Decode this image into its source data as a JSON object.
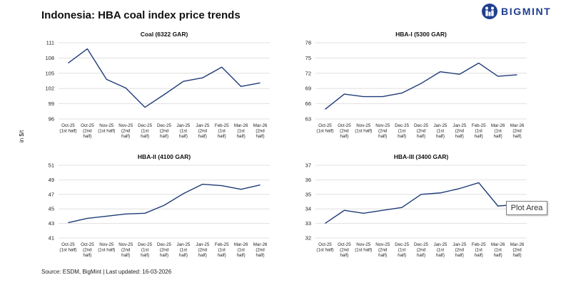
{
  "title": "Indonesia: HBA coal index price trends",
  "y_axis_label": "in $/t",
  "source": "Source: ESDM, BigMint | Last updated: 16-03-2026",
  "logo": {
    "text": "BIGMINT",
    "icon": "bigmint-logo-icon"
  },
  "tooltip": "Plot Area",
  "colors": {
    "line": "#1f3b77",
    "grid": "#d9d9d9",
    "text": "#222222"
  },
  "chart_data": [
    {
      "type": "line",
      "title": "Coal (6322 GAR)",
      "categories": [
        [
          "Oct-25",
          "(1st half)"
        ],
        [
          "Oct-25",
          "(2nd",
          "half)"
        ],
        [
          "Nov-25",
          "(1st half)"
        ],
        [
          "Nov-25",
          "(2nd",
          "half)"
        ],
        [
          "Dec-25",
          "(1st",
          "half)"
        ],
        [
          "Dec-25",
          "(2nd",
          "half)"
        ],
        [
          "Jan-25",
          "(1st",
          "half)"
        ],
        [
          "Jan-25",
          "(2nd",
          "half)"
        ],
        [
          "Feb-25",
          "(1st",
          "half)"
        ],
        [
          "Mar-26",
          "(1st",
          "half)"
        ],
        [
          "Mar-26",
          "(2nd",
          "half)"
        ]
      ],
      "values": [
        107.0,
        109.8,
        103.8,
        102.1,
        98.3,
        100.8,
        103.4,
        104.1,
        106.2,
        102.4,
        103.1
      ],
      "ylim": [
        96,
        111
      ],
      "yticks": [
        96,
        99,
        102,
        105,
        108,
        111
      ]
    },
    {
      "type": "line",
      "title": "HBA-I (5300 GAR)",
      "categories": [
        [
          "Oct-25",
          "(1st half)"
        ],
        [
          "Oct-25",
          "(2nd",
          "half)"
        ],
        [
          "Nov-25",
          "(1st half)"
        ],
        [
          "Nov-25",
          "(2nd",
          "half)"
        ],
        [
          "Dec-25",
          "(1st",
          "half)"
        ],
        [
          "Dec-25",
          "(2nd",
          "half)"
        ],
        [
          "Jan-25",
          "(1st",
          "half)"
        ],
        [
          "Jan-25",
          "(2nd",
          "half)"
        ],
        [
          "Feb-25",
          "(1st",
          "half)"
        ],
        [
          "Mar-26",
          "(1st",
          "half)"
        ],
        [
          "Mar-26",
          "(2nd",
          "half)"
        ]
      ],
      "values": [
        64.9,
        67.9,
        67.4,
        67.4,
        68.1,
        70.0,
        72.3,
        71.8,
        74.0,
        71.4,
        71.7
      ],
      "ylim": [
        63,
        78
      ],
      "yticks": [
        63,
        66,
        69,
        72,
        75,
        78
      ]
    },
    {
      "type": "line",
      "title": "HBA-II (4100 GAR)",
      "categories": [
        [
          "Oct-25",
          "(1st half)"
        ],
        [
          "Oct-25",
          "(2nd",
          "half)"
        ],
        [
          "Nov-25",
          "(1st half)"
        ],
        [
          "Nov-25",
          "(2nd",
          "half)"
        ],
        [
          "Dec-25",
          "(1st",
          "half)"
        ],
        [
          "Dec-25",
          "(2nd",
          "half)"
        ],
        [
          "Jan-25",
          "(1st",
          "half)"
        ],
        [
          "Jan-25",
          "(2nd",
          "half)"
        ],
        [
          "Feb-25",
          "(1st",
          "half)"
        ],
        [
          "Mar-26",
          "(1st",
          "half)"
        ],
        [
          "Mar-26",
          "(2nd",
          "half)"
        ]
      ],
      "values": [
        43.1,
        43.7,
        44.0,
        44.3,
        44.4,
        45.5,
        47.1,
        48.4,
        48.2,
        47.7,
        48.3
      ],
      "ylim": [
        41,
        51
      ],
      "yticks": [
        41,
        43,
        45,
        47,
        49,
        51
      ]
    },
    {
      "type": "line",
      "title": "HBA-III (3400 GAR)",
      "categories": [
        [
          "Oct-25",
          "(1st half)"
        ],
        [
          "Oct-25",
          "(2nd",
          "half)"
        ],
        [
          "Nov-25",
          "(1st half)"
        ],
        [
          "Nov-25",
          "(2nd",
          "half)"
        ],
        [
          "Dec-25",
          "(1st",
          "half)"
        ],
        [
          "Dec-25",
          "(2nd",
          "half)"
        ],
        [
          "Jan-25",
          "(1st",
          "half)"
        ],
        [
          "Jan-25",
          "(2nd",
          "half)"
        ],
        [
          "Feb-25",
          "(1st",
          "half)"
        ],
        [
          "Mar-26",
          "(1st",
          "half)"
        ],
        [
          "Mar-26",
          "(2nd",
          "half)"
        ]
      ],
      "values": [
        33.0,
        33.9,
        33.7,
        33.9,
        34.1,
        35.0,
        35.1,
        35.4,
        35.8,
        34.2,
        34.3
      ],
      "ylim": [
        32,
        37
      ],
      "yticks": [
        32,
        33,
        34,
        35,
        36,
        37
      ]
    }
  ]
}
